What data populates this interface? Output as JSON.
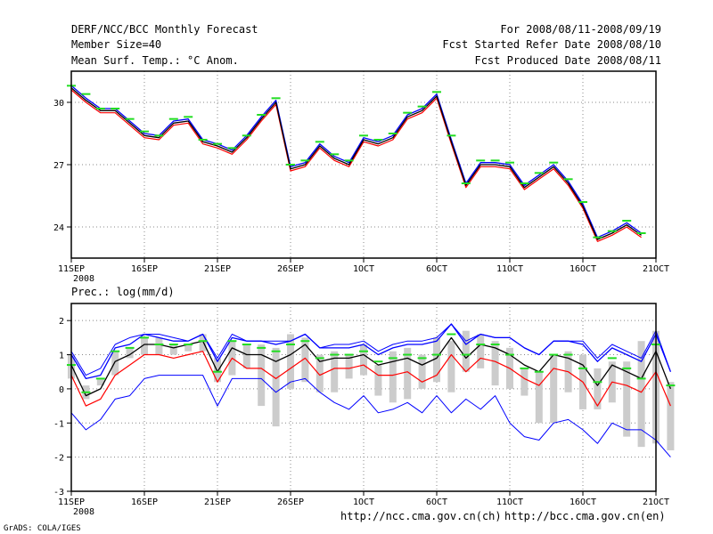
{
  "header": {
    "title": "DERF/NCC/BCC Monthly Forecast",
    "member_size": "Member Size=40",
    "variable": "Mean Surf. Temp.: °C Anom.",
    "period": "For 2008/08/11-2008/09/19",
    "start_date": "Fcst Started Refer Date 2008/08/10",
    "produced_date": "Fcst Produced Date 2008/08/11"
  },
  "footer": {
    "url_ncc": "http://ncc.cma.gov.cn(ch)",
    "url_bcc": "http://bcc.cma.gov.cn(en)",
    "credit": "GrADS: COLA/IGES"
  },
  "colors": {
    "mean": "#000000",
    "upper": "#0000ff",
    "lower": "#ff0000",
    "green": "#22dd22",
    "bar": "#cccccc",
    "grid": "#888888"
  },
  "chart_data": [
    {
      "type": "line",
      "title": "Mean Surf. Temp.: °C Anom.",
      "xlabel": "",
      "ylabel": "",
      "x_ticks": [
        "11SEP",
        "16SEP",
        "21SEP",
        "26SEP",
        "1OCT",
        "6OCT",
        "11OCT",
        "16OCT",
        "21OCT"
      ],
      "x_tick_days": [
        0,
        5,
        10,
        15,
        20,
        25,
        30,
        35,
        40
      ],
      "year_label": "2008",
      "y_ticks": [
        24,
        27,
        30
      ],
      "ylim": [
        22.5,
        31.5
      ],
      "xlim": [
        0,
        40
      ],
      "grid": true,
      "series": [
        {
          "name": "mean",
          "values": [
            30.7,
            30.1,
            29.6,
            29.6,
            29.0,
            28.4,
            28.3,
            29.0,
            29.1,
            28.1,
            27.9,
            27.6,
            28.3,
            29.2,
            30.0,
            26.8,
            27.0,
            27.9,
            27.3,
            27.0,
            28.2,
            28.0,
            28.3,
            29.3,
            29.6,
            30.3,
            28.1,
            26.0,
            27.0,
            27.0,
            26.9,
            25.9,
            26.4,
            26.9,
            26.1,
            25.0,
            23.4,
            23.7,
            24.1,
            23.6
          ]
        },
        {
          "name": "upper",
          "values": [
            30.8,
            30.2,
            29.7,
            29.7,
            29.1,
            28.5,
            28.4,
            29.1,
            29.2,
            28.2,
            28.0,
            27.7,
            28.4,
            29.3,
            30.1,
            26.9,
            27.1,
            28.0,
            27.4,
            27.1,
            28.3,
            28.1,
            28.4,
            29.4,
            29.7,
            30.4,
            28.2,
            26.1,
            27.1,
            27.1,
            27.0,
            26.0,
            26.5,
            27.0,
            26.2,
            25.1,
            23.5,
            23.8,
            24.2,
            23.7
          ]
        },
        {
          "name": "lower",
          "values": [
            30.6,
            30.0,
            29.5,
            29.5,
            28.9,
            28.3,
            28.2,
            28.9,
            29.0,
            28.0,
            27.8,
            27.5,
            28.2,
            29.1,
            29.9,
            26.7,
            26.9,
            27.8,
            27.2,
            26.9,
            28.1,
            27.9,
            28.2,
            29.2,
            29.5,
            30.2,
            28.0,
            25.9,
            26.9,
            26.9,
            26.8,
            25.8,
            26.3,
            26.8,
            26.0,
            24.9,
            23.3,
            23.6,
            24.0,
            23.5
          ]
        },
        {
          "name": "observed",
          "values": [
            30.8,
            30.4,
            29.7,
            29.7,
            29.2,
            28.6,
            28.4,
            29.2,
            29.3,
            28.2,
            28.0,
            27.8,
            28.4,
            29.4,
            30.2,
            27.0,
            27.2,
            28.1,
            27.5,
            27.2,
            28.4,
            28.2,
            28.5,
            29.5,
            29.8,
            30.5,
            28.4,
            26.1,
            27.2,
            27.2,
            27.1,
            26.1,
            26.6,
            27.1,
            26.3,
            25.2,
            23.5,
            23.8,
            24.3,
            23.7
          ]
        }
      ]
    },
    {
      "type": "line",
      "title": "Prec.: log(mm/d)",
      "xlabel": "",
      "ylabel": "",
      "x_ticks": [
        "11SEP",
        "16SEP",
        "21SEP",
        "26SEP",
        "1OCT",
        "6OCT",
        "11OCT",
        "16OCT",
        "21OCT"
      ],
      "x_tick_days": [
        0,
        5,
        10,
        15,
        20,
        25,
        30,
        35,
        40
      ],
      "year_label": "2008",
      "y_ticks": [
        -3,
        -2,
        -1,
        0,
        1,
        2
      ],
      "ylim": [
        -3,
        2.5
      ],
      "xlim": [
        0,
        40
      ],
      "grid": true,
      "bars": [
        {
          "x": 0,
          "top": 1.0,
          "bottom": 0.3
        },
        {
          "x": 1,
          "top": 0.1,
          "bottom": -0.3
        },
        {
          "x": 2,
          "top": 0.3,
          "bottom": 0.1
        },
        {
          "x": 3,
          "top": 1.1,
          "bottom": 0.4
        },
        {
          "x": 4,
          "top": 1.2,
          "bottom": 0.9
        },
        {
          "x": 5,
          "top": 1.5,
          "bottom": 1.0
        },
        {
          "x": 6,
          "top": 1.5,
          "bottom": 1.0
        },
        {
          "x": 7,
          "top": 1.3,
          "bottom": 1.0
        },
        {
          "x": 8,
          "top": 1.3,
          "bottom": 1.1
        },
        {
          "x": 9,
          "top": 1.6,
          "bottom": 1.1
        },
        {
          "x": 10,
          "top": 0.9,
          "bottom": 0.2
        },
        {
          "x": 11,
          "top": 1.4,
          "bottom": 0.4
        },
        {
          "x": 12,
          "top": 1.3,
          "bottom": 0.6
        },
        {
          "x": 13,
          "top": 1.3,
          "bottom": -0.5
        },
        {
          "x": 14,
          "top": 1.2,
          "bottom": -1.1
        },
        {
          "x": 15,
          "top": 1.6,
          "bottom": 0.0
        },
        {
          "x": 16,
          "top": 1.5,
          "bottom": 0.2
        },
        {
          "x": 17,
          "top": 1.0,
          "bottom": -0.1
        },
        {
          "x": 18,
          "top": 1.1,
          "bottom": -0.1
        },
        {
          "x": 19,
          "top": 1.0,
          "bottom": 0.3
        },
        {
          "x": 20,
          "top": 1.3,
          "bottom": 0.4
        },
        {
          "x": 21,
          "top": 0.7,
          "bottom": -0.2
        },
        {
          "x": 22,
          "top": 1.1,
          "bottom": -0.4
        },
        {
          "x": 23,
          "top": 1.2,
          "bottom": -0.3
        },
        {
          "x": 24,
          "top": 1.0,
          "bottom": 0.0
        },
        {
          "x": 25,
          "top": 1.5,
          "bottom": 0.2
        },
        {
          "x": 26,
          "top": 1.4,
          "bottom": -0.1
        },
        {
          "x": 27,
          "top": 1.7,
          "bottom": 0.5
        },
        {
          "x": 28,
          "top": 1.6,
          "bottom": 0.6
        },
        {
          "x": 29,
          "top": 1.4,
          "bottom": 0.1
        },
        {
          "x": 30,
          "top": 1.2,
          "bottom": 0.0
        },
        {
          "x": 31,
          "top": 0.6,
          "bottom": -0.2
        },
        {
          "x": 32,
          "top": 0.5,
          "bottom": -1.0
        },
        {
          "x": 33,
          "top": 1.0,
          "bottom": -1.0
        },
        {
          "x": 34,
          "top": 1.1,
          "bottom": -0.1
        },
        {
          "x": 35,
          "top": 1.0,
          "bottom": -0.6
        },
        {
          "x": 36,
          "top": 0.6,
          "bottom": -0.6
        },
        {
          "x": 37,
          "top": 0.8,
          "bottom": -0.4
        },
        {
          "x": 38,
          "top": 0.8,
          "bottom": -1.4
        },
        {
          "x": 39,
          "top": 1.4,
          "bottom": -1.7
        },
        {
          "x": 40,
          "top": 1.7,
          "bottom": -1.6
        },
        {
          "x": 41,
          "top": 0.2,
          "bottom": -1.8
        }
      ],
      "series": [
        {
          "name": "mean",
          "x_start": 0,
          "values": [
            0.7,
            -0.2,
            0.0,
            0.8,
            1.0,
            1.3,
            1.3,
            1.2,
            1.3,
            1.4,
            0.5,
            1.2,
            1.0,
            1.0,
            0.8,
            1.0,
            1.3,
            0.8,
            0.9,
            0.9,
            1.0,
            0.7,
            0.8,
            0.9,
            0.7,
            0.9,
            1.5,
            0.9,
            1.3,
            1.2,
            1.0,
            0.7,
            0.5,
            1.0,
            0.9,
            0.7,
            0.1,
            0.7,
            0.5,
            0.3,
            1.1,
            0.0
          ]
        },
        {
          "name": "upper",
          "x_start": 0,
          "values": [
            1.0,
            0.3,
            0.4,
            1.2,
            1.3,
            1.6,
            1.5,
            1.4,
            1.4,
            1.6,
            0.8,
            1.5,
            1.4,
            1.4,
            1.3,
            1.4,
            1.6,
            1.2,
            1.2,
            1.2,
            1.3,
            1.0,
            1.2,
            1.3,
            1.3,
            1.4,
            1.9,
            1.3,
            1.6,
            1.5,
            1.5,
            1.2,
            1.0,
            1.4,
            1.4,
            1.3,
            0.8,
            1.2,
            1.0,
            0.8,
            1.6,
            0.5
          ]
        },
        {
          "name": "lower",
          "x_start": 0,
          "values": [
            0.4,
            -0.5,
            -0.3,
            0.4,
            0.7,
            1.0,
            1.0,
            0.9,
            1.0,
            1.1,
            0.2,
            0.9,
            0.6,
            0.6,
            0.3,
            0.6,
            0.9,
            0.4,
            0.6,
            0.6,
            0.7,
            0.4,
            0.4,
            0.5,
            0.2,
            0.4,
            1.0,
            0.5,
            0.9,
            0.8,
            0.6,
            0.3,
            0.1,
            0.6,
            0.5,
            0.2,
            -0.5,
            0.2,
            0.1,
            -0.1,
            0.5,
            -0.5
          ]
        },
        {
          "name": "upper-outer",
          "x_start": 0,
          "values": [
            1.1,
            0.4,
            0.6,
            1.3,
            1.5,
            1.6,
            1.6,
            1.5,
            1.4,
            1.6,
            0.9,
            1.6,
            1.4,
            1.4,
            1.4,
            1.4,
            1.6,
            1.2,
            1.3,
            1.3,
            1.4,
            1.1,
            1.3,
            1.4,
            1.4,
            1.5,
            1.9,
            1.4,
            1.6,
            1.5,
            1.5,
            1.2,
            1.0,
            1.4,
            1.4,
            1.4,
            0.9,
            1.3,
            1.1,
            0.9,
            1.7,
            0.5
          ]
        },
        {
          "name": "lower-outer",
          "x_start": 0,
          "values": [
            -0.7,
            -1.2,
            -0.9,
            -0.3,
            -0.2,
            0.3,
            0.4,
            0.4,
            0.4,
            0.4,
            -0.5,
            0.3,
            0.3,
            0.3,
            -0.1,
            0.2,
            0.3,
            -0.1,
            -0.4,
            -0.6,
            -0.2,
            -0.7,
            -0.6,
            -0.4,
            -0.7,
            -0.2,
            -0.7,
            -0.3,
            -0.6,
            -0.2,
            -1.0,
            -1.4,
            -1.5,
            -1.0,
            -0.9,
            -1.2,
            -1.6,
            -1.0,
            -1.2,
            -1.2,
            -1.5,
            -2.0
          ]
        },
        {
          "name": "observed",
          "x_start": 0,
          "values": [
            0.7,
            -0.1,
            0.3,
            1.1,
            1.2,
            1.5,
            1.3,
            1.3,
            1.3,
            1.4,
            0.5,
            1.4,
            1.3,
            1.2,
            1.1,
            1.3,
            1.4,
            0.9,
            1.0,
            1.0,
            1.1,
            0.8,
            0.9,
            1.0,
            0.9,
            1.0,
            1.6,
            1.0,
            1.3,
            1.3,
            1.0,
            0.6,
            0.5,
            1.0,
            1.0,
            0.6,
            0.2,
            0.9,
            0.6,
            0.3,
            1.3,
            0.1
          ]
        }
      ]
    }
  ]
}
